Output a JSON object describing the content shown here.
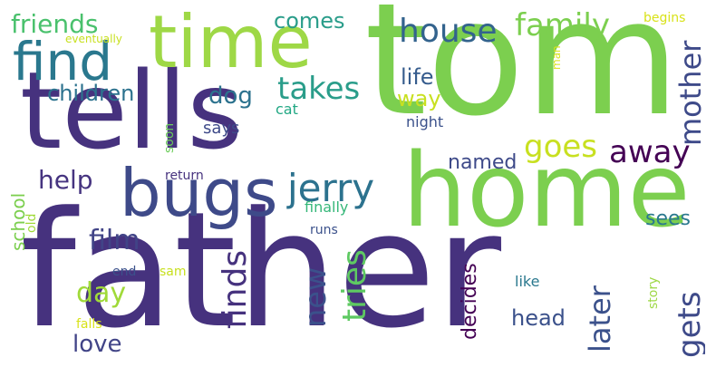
{
  "palette": {
    "deep_purple": "#440154",
    "indigo": "#46327e",
    "slate_blue": "#365c8d",
    "teal_blue": "#277f8e",
    "teal": "#1fa187",
    "green": "#4ac16d",
    "lime": "#a0da39",
    "yellow": "#e3d825"
  },
  "words": [
    {
      "text": "father",
      "color": "#46327e"
    },
    {
      "text": "tom",
      "color": "#7ccf4f"
    },
    {
      "text": "tells",
      "color": "#46327e"
    },
    {
      "text": "home",
      "color": "#7ccf4f"
    },
    {
      "text": "time",
      "color": "#9ed846"
    },
    {
      "text": "bugs",
      "color": "#3e4a89"
    },
    {
      "text": "find",
      "color": "#2a788e"
    },
    {
      "text": "jerry",
      "color": "#2c728e"
    },
    {
      "text": "house",
      "color": "#33638d"
    },
    {
      "text": "family",
      "color": "#7ccf4f"
    },
    {
      "text": "goes",
      "color": "#c8e020"
    },
    {
      "text": "away",
      "color": "#440154"
    },
    {
      "text": "takes",
      "color": "#2a9d8a"
    },
    {
      "text": "finds",
      "color": "#46327e"
    },
    {
      "text": "tries",
      "color": "#5ec962"
    },
    {
      "text": "new",
      "color": "#3b518b"
    },
    {
      "text": "mother",
      "color": "#3e4a89"
    },
    {
      "text": "gets",
      "color": "#3e4a89"
    },
    {
      "text": "later",
      "color": "#3b518b"
    },
    {
      "text": "friends",
      "color": "#4ac16d"
    },
    {
      "text": "children",
      "color": "#2c728e"
    },
    {
      "text": "help",
      "color": "#463480"
    },
    {
      "text": "film",
      "color": "#414487"
    },
    {
      "text": "day",
      "color": "#a0da39"
    },
    {
      "text": "love",
      "color": "#414487"
    },
    {
      "text": "dog",
      "color": "#2c728e"
    },
    {
      "text": "comes",
      "color": "#2a9d8a"
    },
    {
      "text": "life",
      "color": "#365c8d"
    },
    {
      "text": "way",
      "color": "#c8e020"
    },
    {
      "text": "named",
      "color": "#3e4a89"
    },
    {
      "text": "decides",
      "color": "#440154"
    },
    {
      "text": "head",
      "color": "#3b518b"
    },
    {
      "text": "sees",
      "color": "#2a788e"
    },
    {
      "text": "school",
      "color": "#7ccf4f"
    },
    {
      "text": "says",
      "color": "#3e4a89"
    },
    {
      "text": "night",
      "color": "#3b518b"
    },
    {
      "text": "cat",
      "color": "#22a884"
    },
    {
      "text": "soon",
      "color": "#6ccd5a"
    },
    {
      "text": "return",
      "color": "#46327e"
    },
    {
      "text": "finally",
      "color": "#35b779"
    },
    {
      "text": "runs",
      "color": "#3b518b"
    },
    {
      "text": "old",
      "color": "#a0da39"
    },
    {
      "text": "end",
      "color": "#3b518b"
    },
    {
      "text": "sam",
      "color": "#c8e020"
    },
    {
      "text": "like",
      "color": "#2a788e"
    },
    {
      "text": "story",
      "color": "#9ed846"
    },
    {
      "text": "falls",
      "color": "#d8e219"
    },
    {
      "text": "man",
      "color": "#d8e219"
    },
    {
      "text": "begins",
      "color": "#d8e219"
    },
    {
      "text": "eventually",
      "color": "#c8e020"
    }
  ]
}
